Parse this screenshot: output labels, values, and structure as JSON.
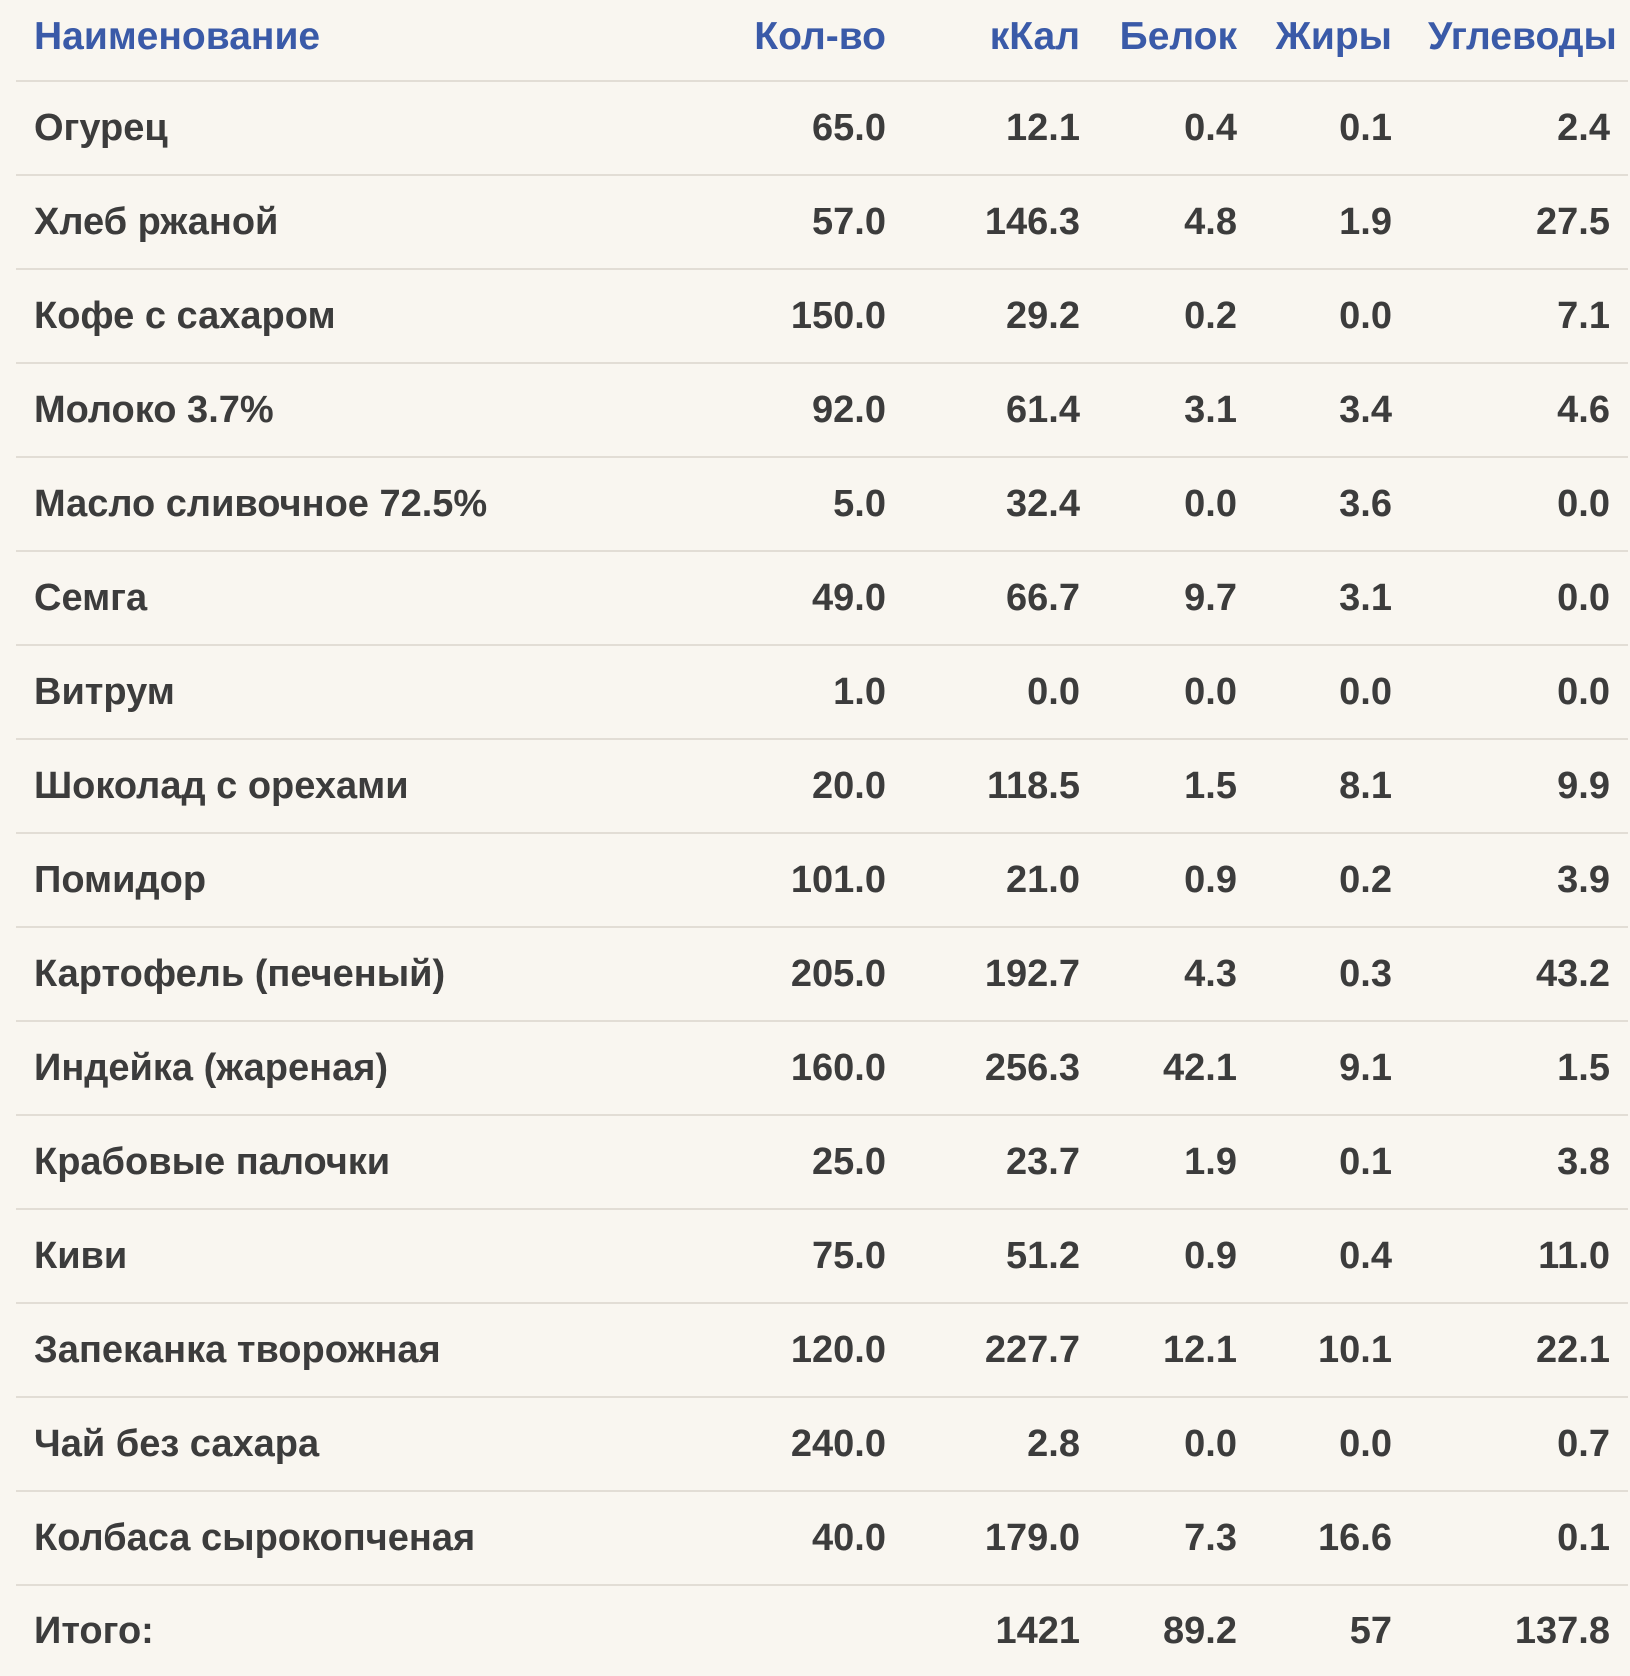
{
  "headers": {
    "name": "Наименование",
    "qty": "Кол-во",
    "kcal": "кКал",
    "protein": "Белок",
    "fat": "Жиры",
    "carbs": "Углеводы"
  },
  "rows": [
    {
      "name": "Огурец",
      "qty": "65.0",
      "kcal": "12.1",
      "protein": "0.4",
      "fat": "0.1",
      "carbs": "2.4"
    },
    {
      "name": "Хлеб ржаной",
      "qty": "57.0",
      "kcal": "146.3",
      "protein": "4.8",
      "fat": "1.9",
      "carbs": "27.5"
    },
    {
      "name": "Кофе с сахаром",
      "qty": "150.0",
      "kcal": "29.2",
      "protein": "0.2",
      "fat": "0.0",
      "carbs": "7.1"
    },
    {
      "name": "Молоко 3.7%",
      "qty": "92.0",
      "kcal": "61.4",
      "protein": "3.1",
      "fat": "3.4",
      "carbs": "4.6"
    },
    {
      "name": "Масло сливочное 72.5%",
      "qty": "5.0",
      "kcal": "32.4",
      "protein": "0.0",
      "fat": "3.6",
      "carbs": "0.0"
    },
    {
      "name": "Семга",
      "qty": "49.0",
      "kcal": "66.7",
      "protein": "9.7",
      "fat": "3.1",
      "carbs": "0.0"
    },
    {
      "name": "Витрум",
      "qty": "1.0",
      "kcal": "0.0",
      "protein": "0.0",
      "fat": "0.0",
      "carbs": "0.0"
    },
    {
      "name": "Шоколад с орехами",
      "qty": "20.0",
      "kcal": "118.5",
      "protein": "1.5",
      "fat": "8.1",
      "carbs": "9.9"
    },
    {
      "name": "Помидор",
      "qty": "101.0",
      "kcal": "21.0",
      "protein": "0.9",
      "fat": "0.2",
      "carbs": "3.9"
    },
    {
      "name": "Картофель (печеный)",
      "qty": "205.0",
      "kcal": "192.7",
      "protein": "4.3",
      "fat": "0.3",
      "carbs": "43.2"
    },
    {
      "name": "Индейка (жареная)",
      "qty": "160.0",
      "kcal": "256.3",
      "protein": "42.1",
      "fat": "9.1",
      "carbs": "1.5"
    },
    {
      "name": "Крабовые палочки",
      "qty": "25.0",
      "kcal": "23.7",
      "protein": "1.9",
      "fat": "0.1",
      "carbs": "3.8"
    },
    {
      "name": "Киви",
      "qty": "75.0",
      "kcal": "51.2",
      "protein": "0.9",
      "fat": "0.4",
      "carbs": "11.0"
    },
    {
      "name": "Запеканка творожная",
      "qty": "120.0",
      "kcal": "227.7",
      "protein": "12.1",
      "fat": "10.1",
      "carbs": "22.1"
    },
    {
      "name": "Чай без сахара",
      "qty": "240.0",
      "kcal": "2.8",
      "protein": "0.0",
      "fat": "0.0",
      "carbs": "0.7"
    },
    {
      "name": "Колбаса сырокопченая",
      "qty": "40.0",
      "kcal": "179.0",
      "protein": "7.3",
      "fat": "16.6",
      "carbs": "0.1"
    }
  ],
  "total": {
    "label": "Итого:",
    "qty": "",
    "kcal": "1421",
    "protein": "89.2",
    "fat": "57",
    "carbs": "137.8"
  },
  "colors": {
    "header_text": "#3a5aa8",
    "body_text": "#3c3c3c",
    "background": "#f9f6f0",
    "divider": "#e2ddd5"
  }
}
